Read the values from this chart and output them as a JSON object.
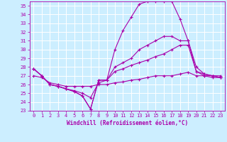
{
  "xlabel": "Windchill (Refroidissement éolien,°C)",
  "background_color": "#cceeff",
  "grid_color": "#ffffff",
  "line_color": "#aa00aa",
  "xlim": [
    -0.5,
    23.5
  ],
  "ylim": [
    23,
    35.5
  ],
  "yticks": [
    23,
    24,
    25,
    26,
    27,
    28,
    29,
    30,
    31,
    32,
    33,
    34,
    35
  ],
  "xticks": [
    0,
    1,
    2,
    3,
    4,
    5,
    6,
    7,
    8,
    9,
    10,
    11,
    12,
    13,
    14,
    15,
    16,
    17,
    18,
    19,
    20,
    21,
    22,
    23
  ],
  "series": [
    [
      0,
      1,
      2,
      3,
      4,
      5,
      6,
      7,
      8,
      9,
      10,
      11,
      12,
      13,
      14,
      15,
      16,
      17,
      18,
      19,
      20,
      21,
      22,
      23
    ],
    [
      27.8,
      27.0,
      26.0,
      25.8,
      25.5,
      25.2,
      24.7,
      23.2,
      26.5,
      26.5,
      30.0,
      32.2,
      33.7,
      35.2,
      35.5,
      35.5,
      35.5,
      35.5,
      33.5,
      31.0,
      28.0,
      27.2,
      27.0,
      26.8
    ],
    [
      27.8,
      27.0,
      26.0,
      25.8,
      25.5,
      25.2,
      24.7,
      23.2,
      26.5,
      26.5,
      28.0,
      28.5,
      29.0,
      30.0,
      30.5,
      31.0,
      31.5,
      31.5,
      31.0,
      31.0,
      27.5,
      27.2,
      27.0,
      26.8
    ],
    [
      27.8,
      27.0,
      26.0,
      25.8,
      25.5,
      25.3,
      25.0,
      24.5,
      26.2,
      26.5,
      27.5,
      27.8,
      28.2,
      28.5,
      28.8,
      29.2,
      29.5,
      30.0,
      30.5,
      30.5,
      27.5,
      27.0,
      26.8,
      26.8
    ],
    [
      27.0,
      26.8,
      26.2,
      26.0,
      25.8,
      25.8,
      25.8,
      25.8,
      26.0,
      26.0,
      26.2,
      26.3,
      26.5,
      26.6,
      26.8,
      27.0,
      27.0,
      27.0,
      27.2,
      27.4,
      27.0,
      27.0,
      27.0,
      27.0
    ]
  ],
  "figsize": [
    3.2,
    2.0
  ],
  "dpi": 100,
  "tick_fontsize": 5,
  "xlabel_fontsize": 5.5
}
